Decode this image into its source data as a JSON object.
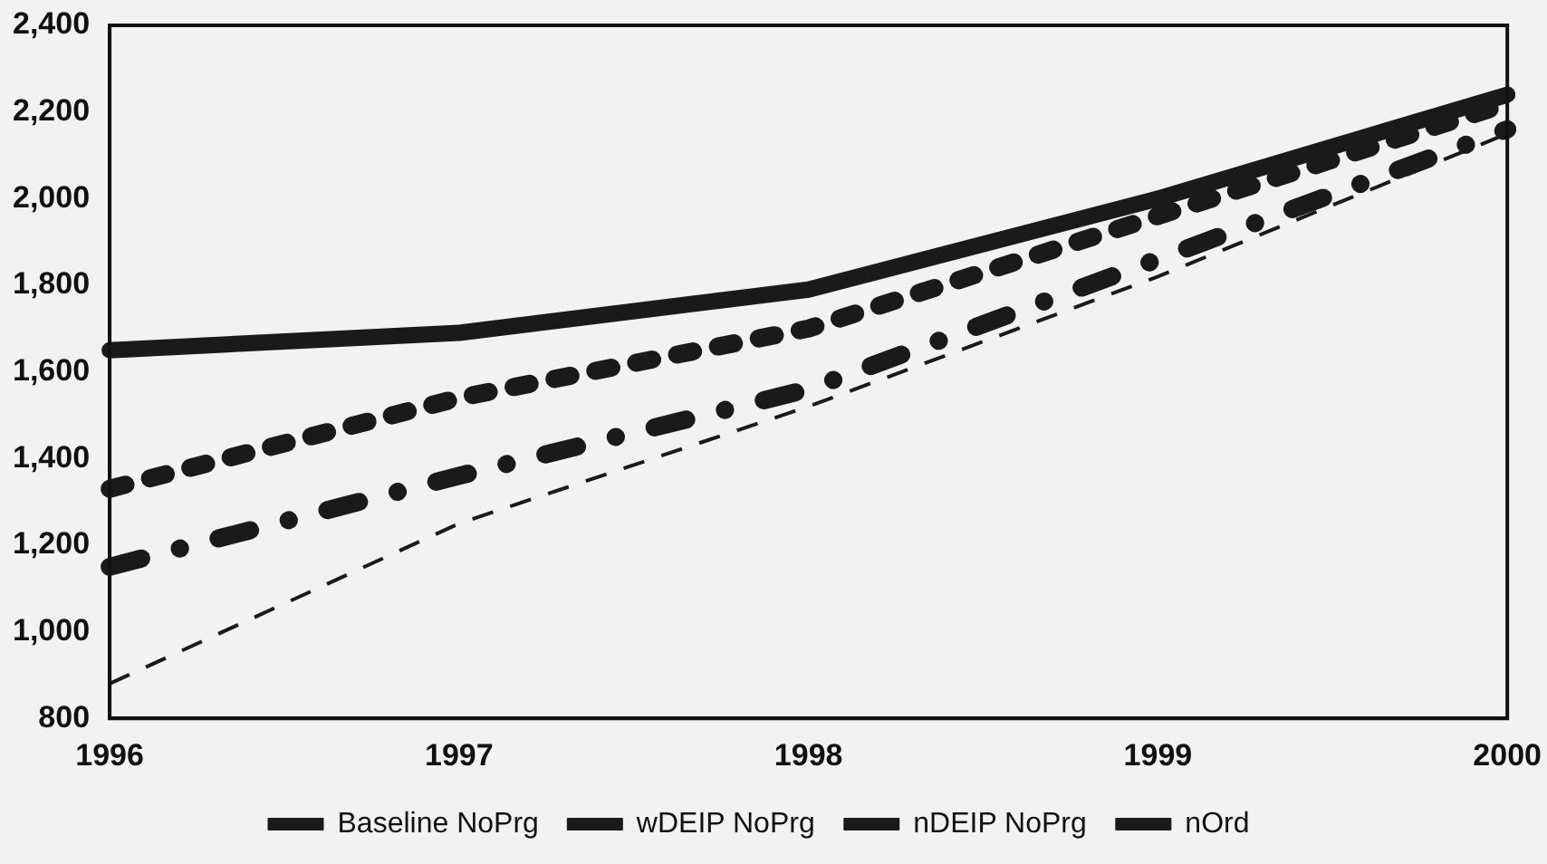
{
  "chart_data": {
    "type": "line",
    "categories": [
      "1996",
      "1997",
      "1998",
      "1999",
      "2000"
    ],
    "series": [
      {
        "name": "Baseline NoPrg",
        "color": "#1a1a1a",
        "line_style": "solid",
        "values": [
          1650,
          1690,
          1790,
          2000,
          2240
        ]
      },
      {
        "name": "wDEIP NoPrg",
        "color": "#1a1a1a",
        "line_style": "dotted",
        "values": [
          1330,
          1540,
          1700,
          1960,
          2220
        ]
      },
      {
        "name": "nDEIP NoPrg",
        "color": "#1a1a1a",
        "line_style": "dashdot",
        "values": [
          1150,
          1360,
          1560,
          1860,
          2160
        ]
      },
      {
        "name": "nOrd",
        "color": "#1a1a1a",
        "line_style": "dashed",
        "values": [
          880,
          1250,
          1520,
          1820,
          2150
        ]
      }
    ],
    "ylim": [
      800,
      2400
    ],
    "yticks": [
      {
        "value": 800,
        "label": "800"
      },
      {
        "value": 1000,
        "label": "1,000"
      },
      {
        "value": 1200,
        "label": "1,200"
      },
      {
        "value": 1400,
        "label": "1,400"
      },
      {
        "value": 1600,
        "label": "1,600"
      },
      {
        "value": 1800,
        "label": "1,800"
      },
      {
        "value": 2000,
        "label": "2,000"
      },
      {
        "value": 2200,
        "label": "2,200"
      },
      {
        "value": 2400,
        "label": "2,400"
      }
    ],
    "grid": false,
    "legend": "bottom",
    "marker": "none"
  }
}
